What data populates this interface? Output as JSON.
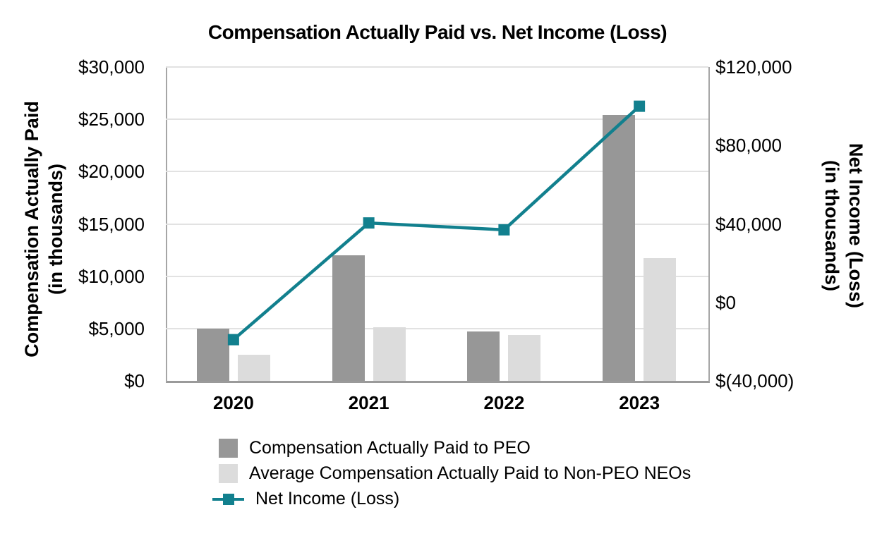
{
  "title": "Compensation Actually Paid vs. Net Income (Loss)",
  "chart_data": {
    "type": "bar",
    "subtype": "grouped-bar-with-line-combo",
    "title": "Compensation Actually Paid vs. Net Income (Loss)",
    "categories": [
      "2020",
      "2021",
      "2022",
      "2023"
    ],
    "series": [
      {
        "name": "Compensation Actually Paid to PEO",
        "type": "bar",
        "axis": "left",
        "color": "#979797",
        "values": [
          5000,
          12000,
          4700,
          25400
        ]
      },
      {
        "name": "Average Compensation Actually Paid to Non-PEO NEOs",
        "type": "bar",
        "axis": "left",
        "color": "#DCDCDC",
        "values": [
          2500,
          5100,
          4400,
          11700
        ]
      },
      {
        "name": "Net Income (Loss)",
        "type": "line",
        "axis": "right",
        "color": "#12808E",
        "marker": "square",
        "values": [
          -19000,
          40500,
          37000,
          100000
        ]
      }
    ],
    "left_axis": {
      "title_line1": "Compensation Actually Paid",
      "title_line2": "(in thousands)",
      "min": 0,
      "max": 30000,
      "tick_step": 5000,
      "tick_labels": [
        "$30,000",
        "$25,000",
        "$20,000",
        "$15,000",
        "$10,000",
        "$5,000",
        "$0"
      ]
    },
    "right_axis": {
      "title_line1": "Net Income (Loss)",
      "title_line2": "(in thousands)",
      "min": -40000,
      "max": 120000,
      "tick_step": 40000,
      "tick_labels": [
        "$120,000",
        "$80,000",
        "$40,000",
        "$0",
        "$(40,000)"
      ]
    },
    "grid": true,
    "legend_position": "bottom"
  }
}
